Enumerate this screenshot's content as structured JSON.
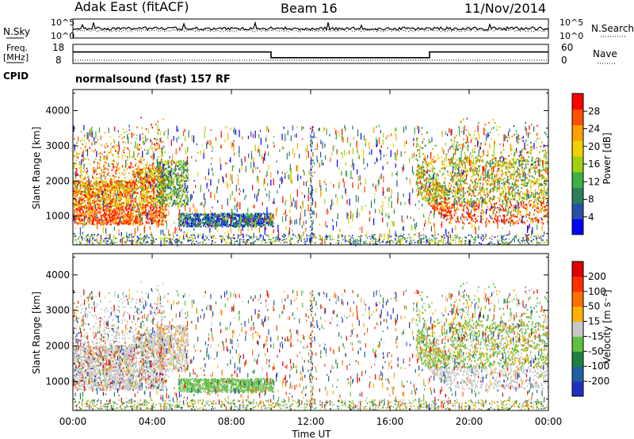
{
  "header": {
    "station": "Adak East (fitACF)",
    "beam": "Beam 16",
    "date": "11/Nov/2014"
  },
  "status_labels": {
    "nsky": "N.Sky",
    "nsearch": "N.Search",
    "freq_line1": "Freq.",
    "freq_line2": "[MHz]",
    "nave": "Nave",
    "cpid": "CPID",
    "mode": "normalsound (fast) 157 RF",
    "nsky_ticks": [
      "10^5",
      "10^0"
    ],
    "nsearch_ticks": [
      "10^5",
      "10^0"
    ],
    "freq_ticks": [
      "18",
      "8"
    ],
    "nave_ticks": [
      "60",
      "0"
    ]
  },
  "x_axis": {
    "label": "Time UT",
    "ticks": [
      "00:00",
      "04:00",
      "08:00",
      "12:00",
      "16:00",
      "20:00",
      "00:00"
    ],
    "hours": [
      0,
      4,
      8,
      12,
      16,
      20,
      24
    ]
  },
  "freq_trace": {
    "segments": [
      {
        "t0": 0,
        "t1": 10,
        "mhz": 14
      },
      {
        "t0": 10,
        "t1": 18,
        "mhz": 11
      },
      {
        "t0": 18,
        "t1": 24,
        "mhz": 14
      }
    ]
  },
  "chart_data": [
    {
      "type": "heatmap",
      "quantity": "power",
      "ylabel": "Slant Range [km]",
      "xlabel": "",
      "xlim": [
        0,
        24
      ],
      "ylim": [
        180,
        4600
      ],
      "yticks": [
        "4000",
        "3000",
        "2000",
        "1000"
      ],
      "ytick_values": [
        4000,
        3000,
        2000,
        1000
      ],
      "colorbar": {
        "label": "Power [dB]",
        "ticks": [
          "28",
          "24",
          "20",
          "16",
          "12",
          "8",
          "4"
        ],
        "tick_values": [
          28,
          24,
          20,
          16,
          12,
          8,
          4
        ],
        "range": [
          0,
          32
        ],
        "colors": [
          "#0000ff",
          "#2a4fa8",
          "#2e7d5a",
          "#3cb043",
          "#a0d010",
          "#f0d000",
          "#ffa000",
          "#ff5000",
          "#ff0000"
        ]
      }
    },
    {
      "type": "heatmap",
      "quantity": "velocity",
      "ylabel": "Slant Range [km]",
      "xlabel": "Time UT",
      "xlim": [
        0,
        24
      ],
      "ylim": [
        180,
        4600
      ],
      "yticks": [
        "4000",
        "3000",
        "2000",
        "1000"
      ],
      "ytick_values": [
        4000,
        3000,
        2000,
        1000
      ],
      "colorbar": {
        "label": "Velocity [m s⁻¹]",
        "ticks": [
          "200",
          "100",
          "50",
          "15",
          "-15",
          "-50",
          "-100",
          "-200"
        ],
        "tick_values": [
          200,
          100,
          50,
          15,
          -15,
          -50,
          -100,
          -200
        ],
        "colors": [
          "#2030c0",
          "#2060a0",
          "#208040",
          "#60c040",
          "#c8c8c8",
          "#ffb000",
          "#ff7000",
          "#ff3000",
          "#e00000"
        ]
      }
    }
  ]
}
